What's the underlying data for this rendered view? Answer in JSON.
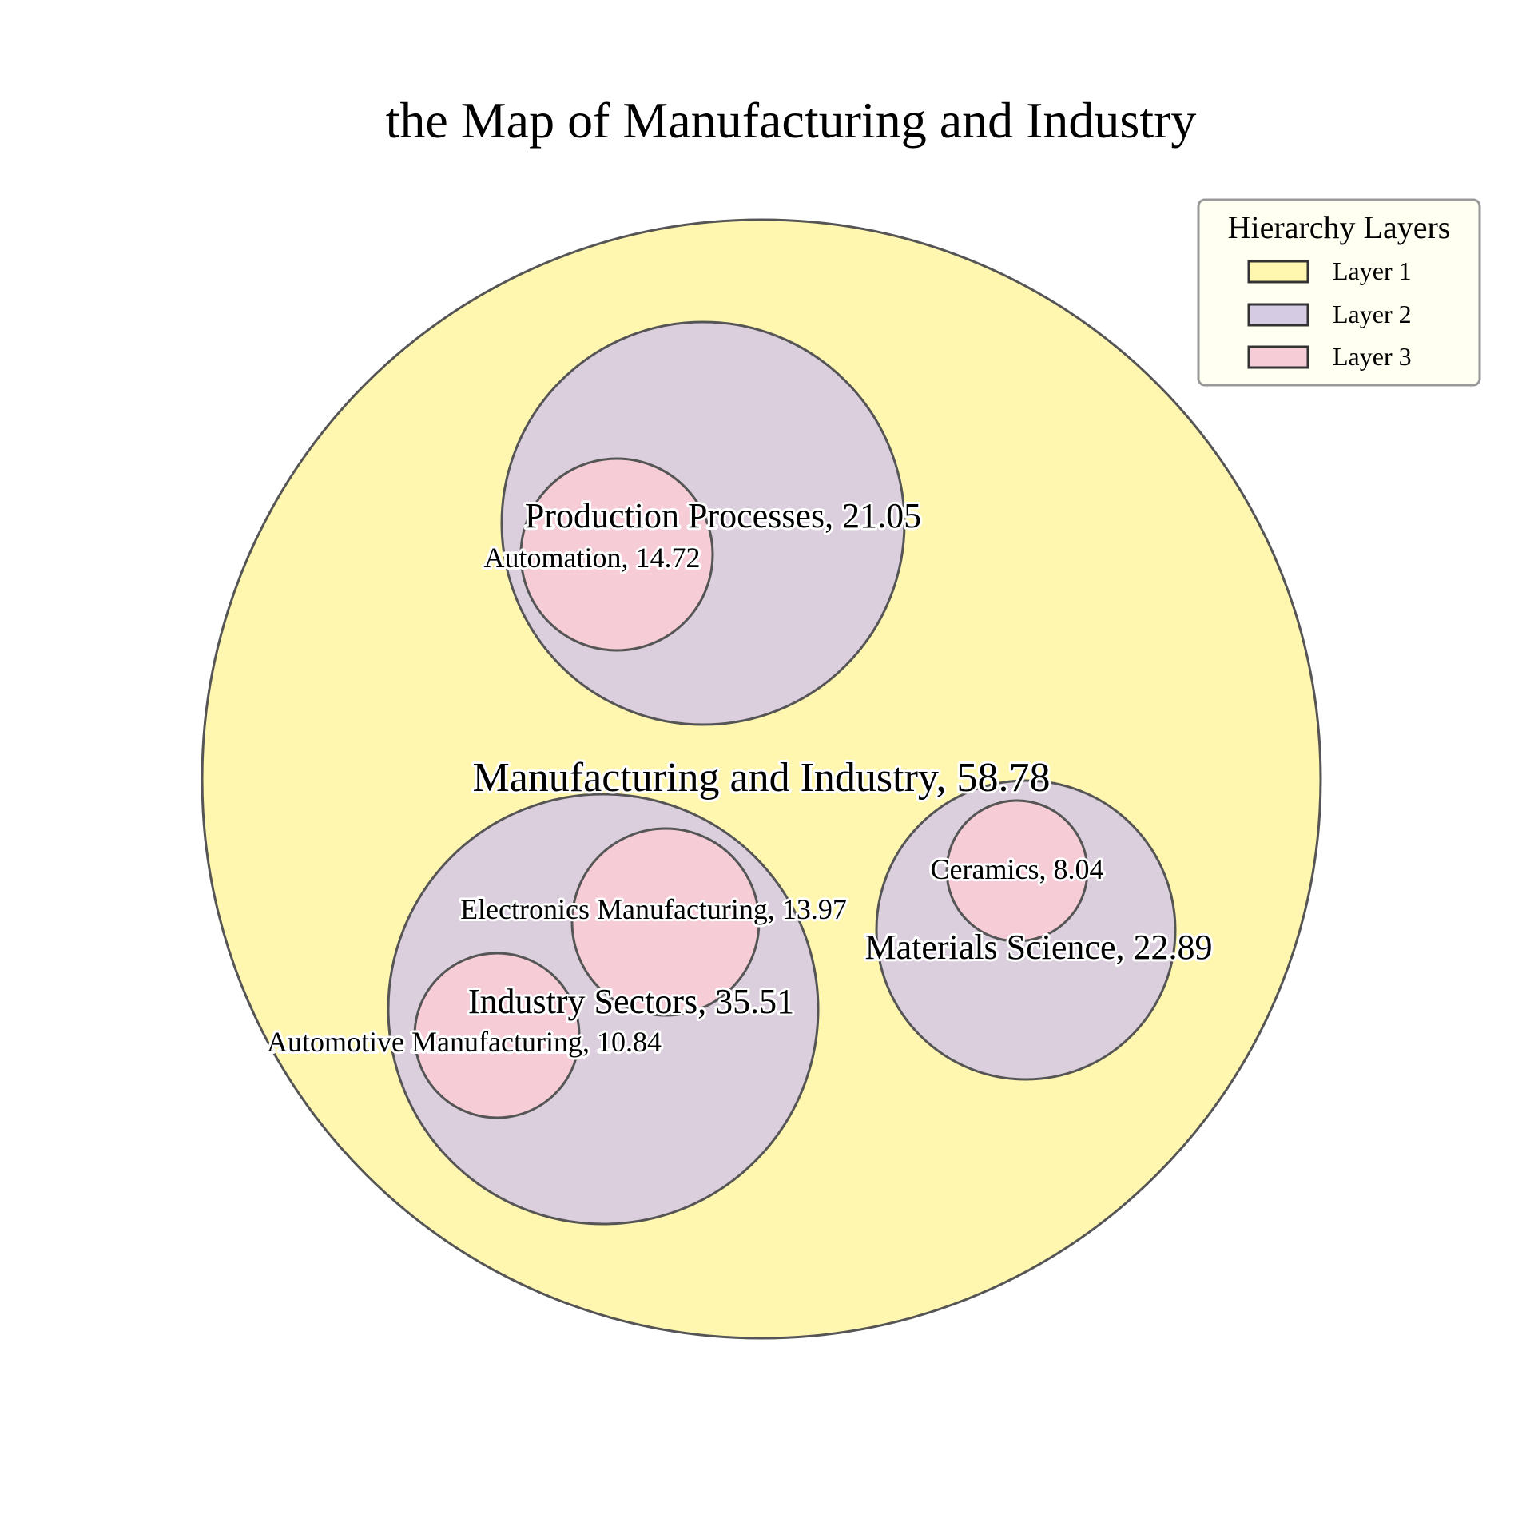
{
  "chart_data": {
    "type": "circle-packing",
    "title": "the Map of Manufacturing and Industry",
    "colors": {
      "layer_1": "#fff6b0",
      "layer_2": "#dbcedd",
      "layer_3": "#f6cdd6",
      "outline": "#555555"
    },
    "nodes": [
      {
        "id": "root",
        "name": "Manufacturing and Industry",
        "value": 58.78,
        "layer": 1,
        "label": "Manufacturing and Industry, 58.78"
      },
      {
        "id": "pp",
        "name": "Production Processes",
        "value": 21.05,
        "layer": 2,
        "label": "Production Processes, 21.05"
      },
      {
        "id": "auto",
        "name": "Automation",
        "value": 14.72,
        "layer": 3,
        "label": "Automation, 14.72"
      },
      {
        "id": "is",
        "name": "Industry Sectors",
        "value": 35.51,
        "layer": 2,
        "label": "Industry Sectors, 35.51"
      },
      {
        "id": "em",
        "name": "Electronics Manufacturing",
        "value": 13.97,
        "layer": 3,
        "label": "Electronics Manufacturing, 13.97"
      },
      {
        "id": "am",
        "name": "Automotive Manufacturing",
        "value": 10.84,
        "layer": 3,
        "label": "Automotive Manufacturing, 10.84"
      },
      {
        "id": "ms",
        "name": "Materials Science",
        "value": 22.89,
        "layer": 2,
        "label": "Materials Science, 22.89"
      },
      {
        "id": "cer",
        "name": "Ceramics",
        "value": 8.04,
        "layer": 3,
        "label": "Ceramics, 8.04"
      }
    ],
    "legend": {
      "title": "Hierarchy Layers",
      "placement": "top-right",
      "entries": [
        "Layer 1",
        "Layer 2",
        "Layer 3"
      ]
    }
  }
}
